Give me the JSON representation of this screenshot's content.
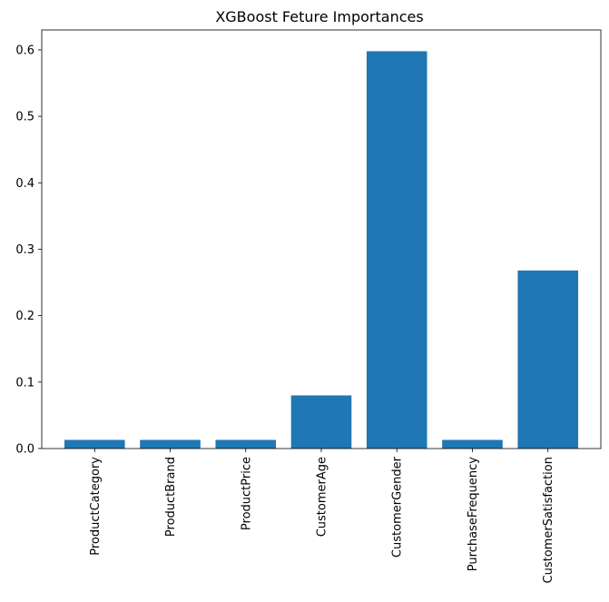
{
  "chart_data": {
    "type": "bar",
    "title": "XGBoost Feture Importances",
    "xlabel": "",
    "ylabel": "",
    "categories": [
      "ProductCategory",
      "ProductBrand",
      "ProductPrice",
      "CustomerAge",
      "CustomerGender",
      "PurchaseFrequency",
      "CustomerSatisfaction"
    ],
    "values": [
      0.013,
      0.013,
      0.013,
      0.08,
      0.598,
      0.013,
      0.268
    ],
    "ylim": [
      0,
      0.63
    ],
    "yticks": [
      0.0,
      0.1,
      0.2,
      0.3,
      0.4,
      0.5,
      0.6
    ],
    "ytick_labels": [
      "0.0",
      "0.1",
      "0.2",
      "0.3",
      "0.4",
      "0.5",
      "0.6"
    ],
    "bar_color": "#1f77b4",
    "grid": false,
    "legend": "none"
  }
}
